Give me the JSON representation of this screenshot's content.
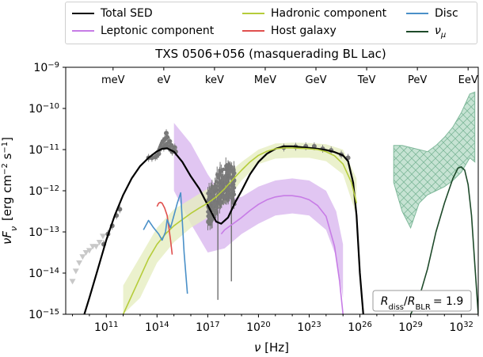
{
  "chart_data": {
    "type": "line",
    "title": "TXS 0506+056 (masquerading BL Lac)",
    "xlabel": "ν [Hz]",
    "ylabel": "νF_ν [erg cm⁻² s⁻¹]",
    "x_scale": "log",
    "y_scale": "log",
    "xlim_log10": [
      8.6,
      33.0
    ],
    "ylim_log10": [
      -15,
      -9
    ],
    "x_ticks": [
      {
        "log10": 11,
        "base": "10",
        "exp": "11"
      },
      {
        "log10": 14,
        "base": "10",
        "exp": "14"
      },
      {
        "log10": 17,
        "base": "10",
        "exp": "17"
      },
      {
        "log10": 20,
        "base": "10",
        "exp": "20"
      },
      {
        "log10": 23,
        "base": "10",
        "exp": "23"
      },
      {
        "log10": 26,
        "base": "10",
        "exp": "26"
      },
      {
        "log10": 29,
        "base": "10",
        "exp": "29"
      },
      {
        "log10": 32,
        "base": "10",
        "exp": "32"
      }
    ],
    "y_ticks": [
      {
        "log10": -15,
        "base": "10",
        "exp": "−15"
      },
      {
        "log10": -14,
        "base": "10",
        "exp": "−14"
      },
      {
        "log10": -13,
        "base": "10",
        "exp": "−13"
      },
      {
        "log10": -12,
        "base": "10",
        "exp": "−12"
      },
      {
        "log10": -11,
        "base": "10",
        "exp": "−11"
      },
      {
        "log10": -10,
        "base": "10",
        "exp": "−10"
      },
      {
        "log10": -9,
        "base": "10",
        "exp": "−9"
      }
    ],
    "energy_axis": [
      {
        "label": "meV",
        "log10_nu": 11.4
      },
      {
        "label": "eV",
        "log10_nu": 14.4
      },
      {
        "label": "keV",
        "log10_nu": 17.4
      },
      {
        "label": "MeV",
        "log10_nu": 20.4
      },
      {
        "label": "GeV",
        "log10_nu": 23.4
      },
      {
        "label": "TeV",
        "log10_nu": 26.4
      },
      {
        "label": "PeV",
        "log10_nu": 29.4
      },
      {
        "label": "EeV",
        "log10_nu": 32.4
      }
    ],
    "annotation": {
      "lhs": "R",
      "lhs_sub": "diss",
      "rhs": "R",
      "rhs_sub": "BLR",
      "value": "= 1.9",
      "placement": "bottom-right"
    },
    "legend_placement": "top-outside",
    "series": [
      {
        "name": "Total SED",
        "color": "#000000",
        "x_log10": [
          9.7,
          10.0,
          10.5,
          11.0,
          11.5,
          12.0,
          12.5,
          13.0,
          13.5,
          14.0,
          14.3,
          14.6,
          15.0,
          15.5,
          16.0,
          16.5,
          17.0,
          17.5,
          17.8,
          18.2,
          18.6,
          19.0,
          19.5,
          20.0,
          20.5,
          21.0,
          21.5,
          22.0,
          22.5,
          23.0,
          23.5,
          24.0,
          24.5,
          25.0,
          25.3,
          25.6,
          25.8,
          26.0,
          26.2
        ],
        "y_log10": [
          -15.0,
          -14.6,
          -13.9,
          -13.2,
          -12.6,
          -12.1,
          -11.7,
          -11.4,
          -11.2,
          -11.04,
          -10.98,
          -10.97,
          -11.05,
          -11.3,
          -11.65,
          -11.95,
          -12.35,
          -12.75,
          -12.8,
          -12.65,
          -12.3,
          -12.0,
          -11.6,
          -11.3,
          -11.1,
          -10.98,
          -10.92,
          -10.92,
          -10.94,
          -10.96,
          -10.98,
          -11.01,
          -11.06,
          -11.14,
          -11.28,
          -11.8,
          -12.6,
          -14.0,
          -15.0
        ]
      },
      {
        "name": "Leptonic component",
        "color": "#c77ce6",
        "x_log10": [
          17.8,
          18.0,
          18.5,
          19.0,
          19.5,
          20.0,
          20.5,
          21.0,
          21.5,
          22.0,
          22.5,
          23.0,
          23.5,
          24.0,
          24.5,
          24.8,
          25.0
        ],
        "y_log10": [
          -13.05,
          -12.95,
          -12.8,
          -12.65,
          -12.48,
          -12.33,
          -12.22,
          -12.15,
          -12.12,
          -12.12,
          -12.15,
          -12.22,
          -12.36,
          -12.62,
          -13.35,
          -14.2,
          -15.0
        ]
      },
      {
        "name": "Hadronic component",
        "color": "#b5cc3a",
        "x_log10": [
          12.0,
          12.5,
          13.0,
          13.5,
          14.0,
          14.5,
          15.0,
          15.5,
          16.0,
          16.5,
          17.0,
          17.5,
          18.0,
          18.5,
          19.0,
          19.5,
          20.0,
          20.5,
          21.0,
          21.5,
          22.0,
          22.5,
          23.0,
          23.5,
          24.0,
          24.5,
          25.0,
          25.5,
          25.8
        ],
        "y_log10": [
          -15.0,
          -14.55,
          -14.1,
          -13.65,
          -13.3,
          -13.05,
          -12.85,
          -12.7,
          -12.55,
          -12.42,
          -12.3,
          -12.15,
          -11.95,
          -11.72,
          -11.5,
          -11.3,
          -11.14,
          -11.04,
          -10.98,
          -10.96,
          -10.96,
          -10.97,
          -10.98,
          -11.0,
          -11.05,
          -11.15,
          -11.35,
          -11.8,
          -12.3
        ]
      },
      {
        "name": "Host galaxy",
        "color": "#e0504e",
        "x_log10": [
          14.0,
          14.1,
          14.2,
          14.3,
          14.45,
          14.6,
          14.7,
          14.8,
          14.9
        ],
        "y_log10": [
          -12.38,
          -12.3,
          -12.28,
          -12.3,
          -12.42,
          -12.6,
          -12.9,
          -13.2,
          -13.55
        ]
      },
      {
        "name": "Disc",
        "color": "#4a90c8",
        "x_log10": [
          13.2,
          13.5,
          13.8,
          14.1,
          14.3,
          14.5,
          14.6,
          14.8,
          15.0,
          15.2,
          15.4,
          15.6,
          15.8
        ],
        "y_log10": [
          -12.95,
          -12.72,
          -12.9,
          -13.05,
          -13.2,
          -13.0,
          -12.7,
          -12.9,
          -12.6,
          -12.3,
          -12.05,
          -13.5,
          -14.5
        ]
      },
      {
        "name": "ν_μ",
        "color": "#1e4a2a",
        "x_log10": [
          29.0,
          29.5,
          30.0,
          30.5,
          31.0,
          31.5,
          31.8,
          32.0,
          32.2,
          32.4,
          32.6,
          32.8,
          33.0
        ],
        "y_log10": [
          -15.0,
          -14.6,
          -13.9,
          -13.0,
          -12.3,
          -11.7,
          -11.45,
          -11.42,
          -11.5,
          -11.85,
          -12.6,
          -13.8,
          -15.0
        ]
      }
    ],
    "bands": [
      {
        "name": "Leptonic component band",
        "color": "#d9b8ef",
        "x_log10": [
          15.0,
          16.0,
          17.0,
          18.0,
          19.0,
          20.0,
          21.0,
          22.0,
          23.0,
          24.0,
          24.6,
          25.0
        ],
        "y_low": [
          -12.0,
          -12.8,
          -13.5,
          -13.4,
          -13.05,
          -12.8,
          -12.6,
          -12.55,
          -12.6,
          -12.95,
          -13.6,
          -14.6
        ],
        "y_high": [
          -10.35,
          -10.85,
          -11.6,
          -12.2,
          -12.15,
          -11.9,
          -11.75,
          -11.7,
          -11.75,
          -12.0,
          -12.5,
          -13.3
        ]
      },
      {
        "name": "Hadronic component band",
        "color": "#e6eec0",
        "x_log10": [
          12.0,
          13.0,
          14.0,
          15.0,
          16.0,
          17.0,
          18.0,
          19.0,
          20.0,
          21.0,
          22.0,
          23.0,
          24.0,
          25.0,
          25.8
        ],
        "y_low": [
          -15.0,
          -14.6,
          -13.75,
          -13.25,
          -12.9,
          -12.65,
          -12.3,
          -11.75,
          -11.35,
          -11.22,
          -11.2,
          -11.2,
          -11.28,
          -11.6,
          -12.6
        ],
        "y_high": [
          -14.3,
          -13.6,
          -12.9,
          -12.45,
          -12.2,
          -11.95,
          -11.65,
          -11.3,
          -11.0,
          -10.85,
          -10.83,
          -10.84,
          -10.87,
          -11.0,
          -11.7
        ]
      },
      {
        "name": "ν_μ band",
        "color": "#b8dcc8",
        "x_log10": [
          28.0,
          28.5,
          29.0,
          29.5,
          30.0,
          30.5,
          31.0,
          31.5,
          32.0,
          32.5,
          32.8
        ],
        "y_low": [
          -11.8,
          -12.5,
          -12.9,
          -12.3,
          -12.1,
          -12.0,
          -11.9,
          -11.75,
          -11.55,
          -11.2,
          -11.3
        ],
        "y_high": [
          -10.9,
          -10.9,
          -10.95,
          -11.0,
          -11.05,
          -10.9,
          -10.7,
          -10.45,
          -10.1,
          -9.65,
          -9.6
        ]
      }
    ],
    "observations": {
      "grey_points": [
        [
          11.8,
          -12.45
        ],
        [
          11.6,
          -12.6
        ],
        [
          11.35,
          -12.85
        ],
        [
          11.1,
          -13.05
        ],
        [
          10.85,
          -13.3
        ],
        [
          13.5,
          -11.2
        ],
        [
          13.7,
          -11.2
        ],
        [
          13.9,
          -11.18
        ],
        [
          14.0,
          -11.15
        ],
        [
          14.1,
          -11.1
        ],
        [
          14.15,
          -11.0
        ],
        [
          14.2,
          -10.95
        ],
        [
          14.25,
          -10.9
        ],
        [
          14.3,
          -10.85
        ],
        [
          14.35,
          -10.8
        ],
        [
          14.4,
          -10.95
        ],
        [
          14.45,
          -10.75
        ],
        [
          14.5,
          -10.9
        ],
        [
          14.55,
          -10.6
        ],
        [
          14.6,
          -10.7
        ],
        [
          14.65,
          -10.85
        ],
        [
          14.7,
          -10.95
        ],
        [
          14.75,
          -10.8
        ],
        [
          14.8,
          -11.0
        ],
        [
          14.85,
          -10.9
        ],
        [
          14.9,
          -11.05
        ],
        [
          15.0,
          -11.0
        ],
        [
          15.05,
          -10.95
        ],
        [
          15.1,
          -11.05
        ],
        [
          21.5,
          -10.95
        ],
        [
          22.2,
          -10.93
        ],
        [
          22.8,
          -10.92
        ],
        [
          23.3,
          -10.92
        ],
        [
          23.8,
          -10.98
        ],
        [
          24.3,
          -11.02
        ],
        [
          24.9,
          -11.12
        ],
        [
          25.3,
          -11.2
        ]
      ],
      "xray_range_log10_nu": [
        17.0,
        18.6
      ],
      "xray_range_log10_flux": [
        -13.2,
        -11.8
      ],
      "triangles": [
        [
          9.0,
          -14.2
        ],
        [
          9.2,
          -13.95
        ],
        [
          9.4,
          -13.75
        ],
        [
          9.6,
          -13.6
        ],
        [
          9.8,
          -13.5
        ],
        [
          10.0,
          -13.45
        ],
        [
          10.2,
          -13.35
        ],
        [
          10.4,
          -13.35
        ],
        [
          10.6,
          -13.25
        ],
        [
          10.8,
          -13.1
        ]
      ]
    }
  }
}
